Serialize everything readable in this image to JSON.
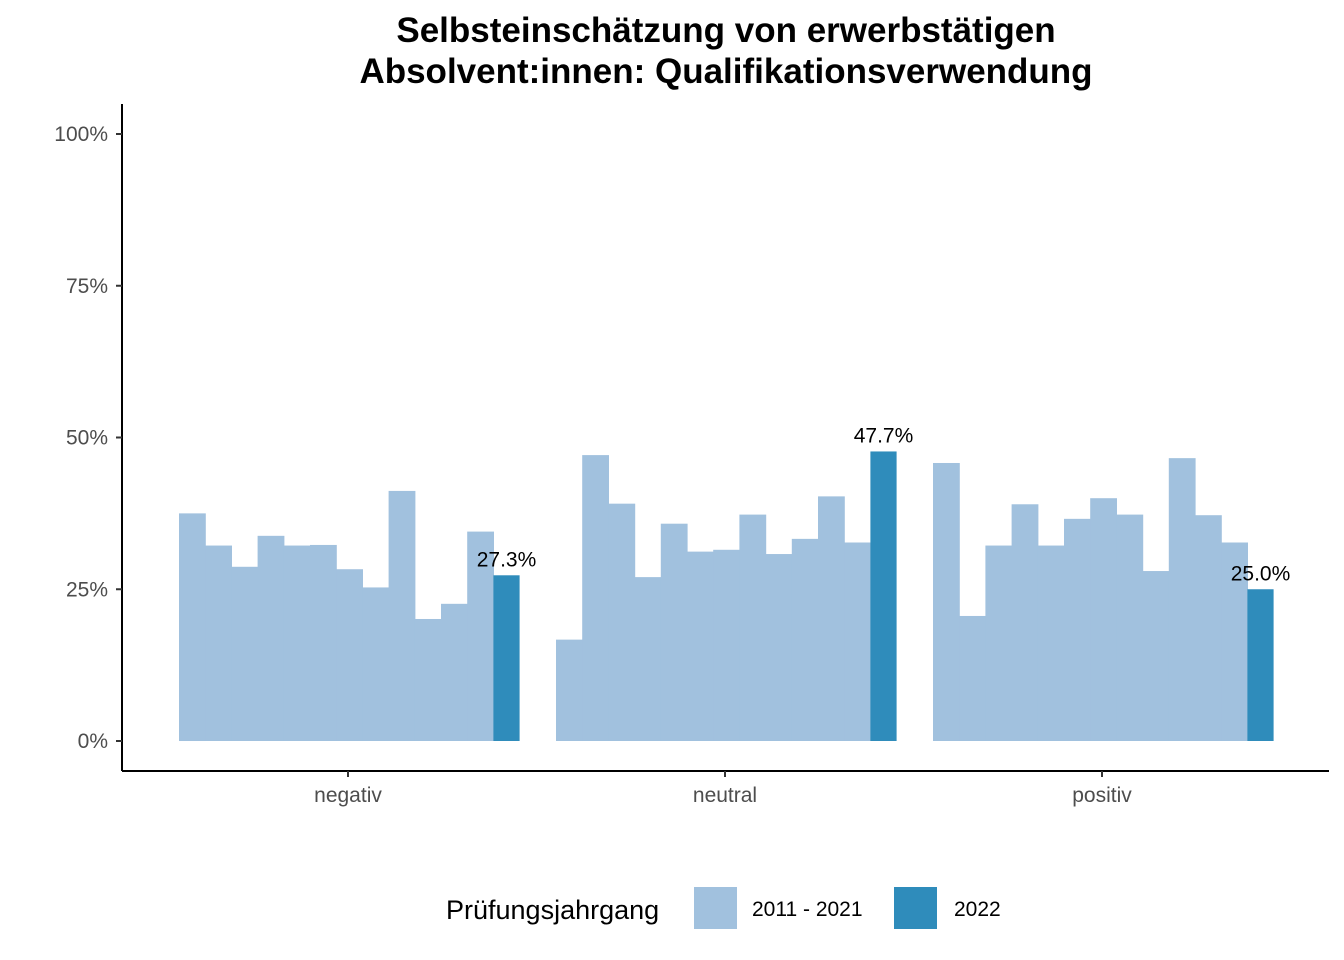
{
  "chart_data": {
    "type": "bar",
    "title_lines": [
      "Selbsteinschätzung von erwerbstätigen",
      "Absolvent:innen: Qualifikationsverwendung"
    ],
    "xlabel": "",
    "ylabel": "",
    "ylim": [
      0,
      1.05
    ],
    "y_ticks": [
      0,
      0.25,
      0.5,
      0.75,
      1.0
    ],
    "y_tick_labels": [
      "0%",
      "25%",
      "50%",
      "75%",
      "100%"
    ],
    "categories": [
      "negativ",
      "neutral",
      "positiv"
    ],
    "groups": [
      {
        "category": "negativ",
        "values_2011_2021": [
          0.375,
          0.322,
          0.287,
          0.338,
          0.322,
          0.323,
          0.283,
          0.253,
          0.412,
          0.201,
          0.226,
          0.345
        ],
        "value_2022": 0.273,
        "label_2022": "27.3%"
      },
      {
        "category": "neutral",
        "values_2011_2021": [
          0.167,
          0.471,
          0.391,
          0.27,
          0.358,
          0.312,
          0.315,
          0.373,
          0.308,
          0.333,
          0.403,
          0.327
        ],
        "value_2022": 0.477,
        "label_2022": "47.7%"
      },
      {
        "category": "positiv",
        "values_2011_2021": [
          0.458,
          0.206,
          0.322,
          0.39,
          0.322,
          0.366,
          0.4,
          0.373,
          0.28,
          0.466,
          0.372,
          0.327
        ],
        "value_2022": 0.25,
        "label_2022": "25.0%"
      }
    ],
    "legend": {
      "title": "Prüfungsjahrgang",
      "position": "bottom",
      "entries": [
        {
          "label": "2011 - 2021",
          "color": "#a1c1de"
        },
        {
          "label": "2022",
          "color": "#2f8cbb"
        }
      ]
    },
    "colors": {
      "past": "#a1c1de",
      "current": "#2f8cbb"
    },
    "grid": false
  }
}
